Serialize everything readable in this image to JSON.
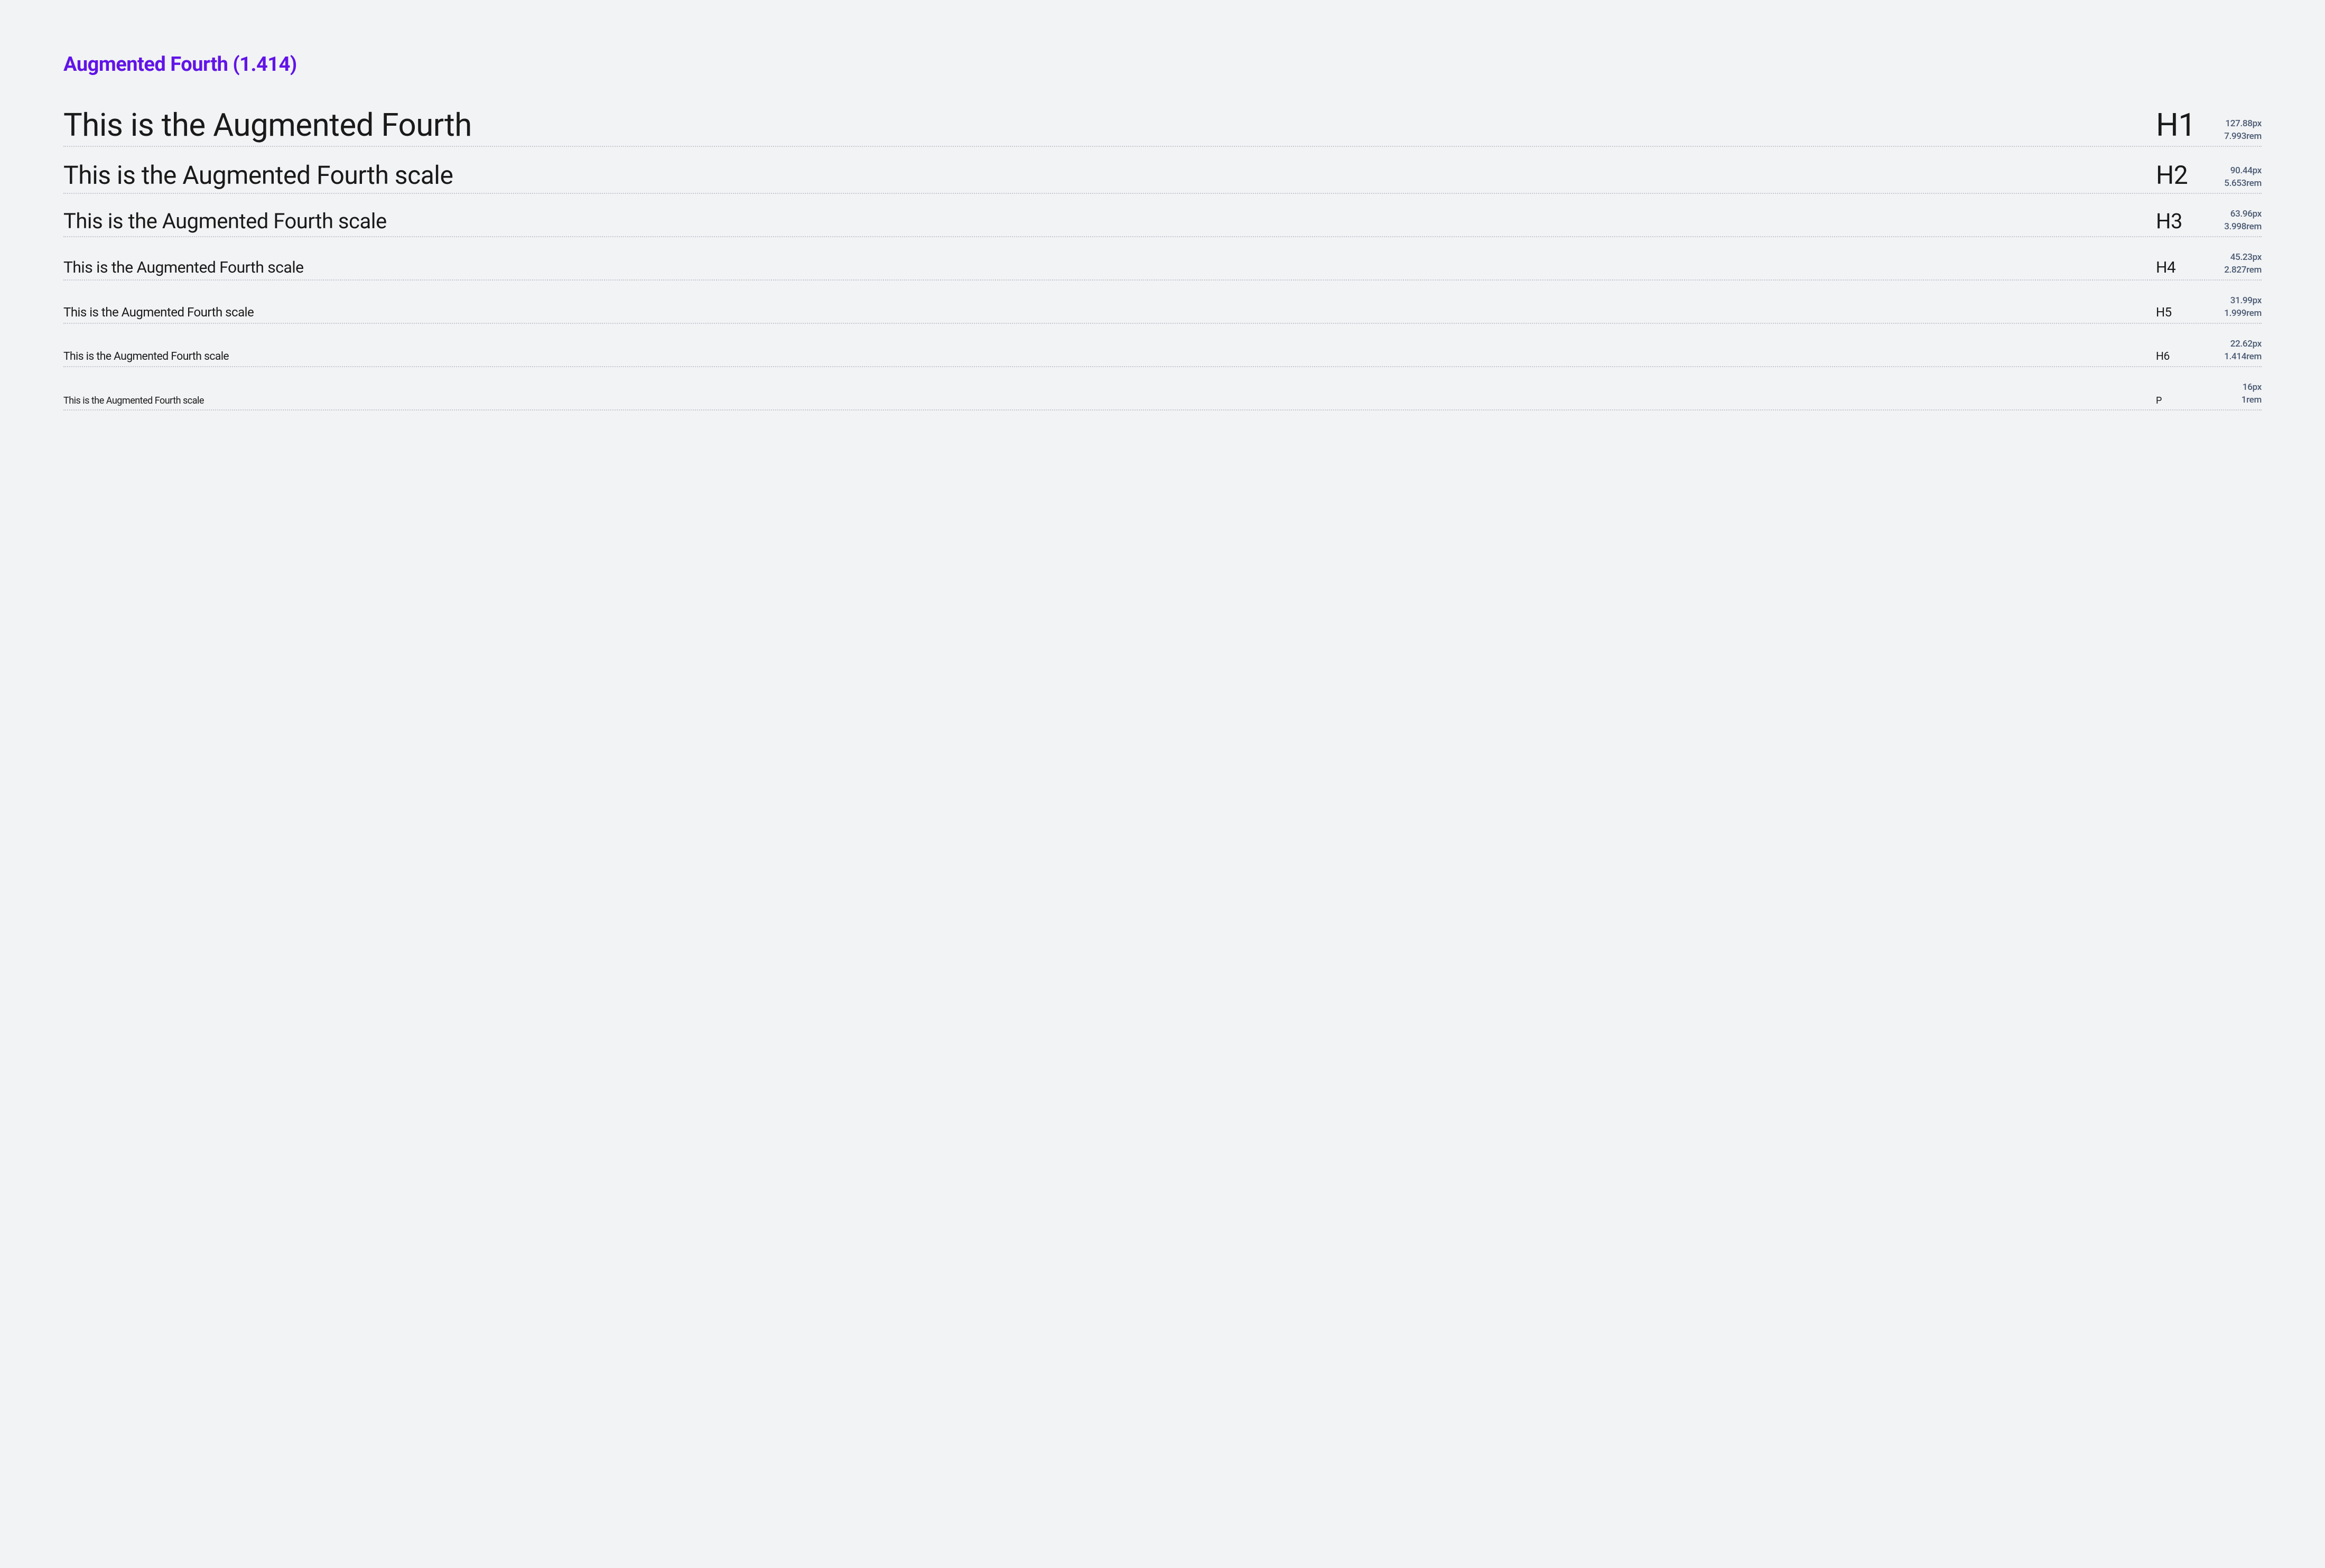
{
  "title": "Augmented Fourth (1.414)",
  "title_color": "#6114e8",
  "background_color": "#f2f3f5",
  "text_color": "#1a1a1a",
  "meta_color": "#4a5a72",
  "divider_color": "#c5c8cf",
  "rows": [
    {
      "sample": "This is the Augmented Fourth",
      "tag": "H1",
      "px": "127.88px",
      "rem": "7.993rem",
      "sample_fontsize": 60,
      "tag_fontsize": 60
    },
    {
      "sample": "This is the Augmented Fourth scale",
      "tag": "H2",
      "px": "90.44px",
      "rem": "5.653rem",
      "sample_fontsize": 48,
      "tag_fontsize": 48
    },
    {
      "sample": "This is the Augmented Fourth scale",
      "tag": "H3",
      "px": "63.96px",
      "rem": "3.998rem",
      "sample_fontsize": 40,
      "tag_fontsize": 40
    },
    {
      "sample": "This is the Augmented Fourth scale",
      "tag": "H4",
      "px": "45.23px",
      "rem": "2.827rem",
      "sample_fontsize": 30,
      "tag_fontsize": 30
    },
    {
      "sample": "This is the Augmented Fourth scale",
      "tag": "H5",
      "px": "31.99px",
      "rem": "1.999rem",
      "sample_fontsize": 24,
      "tag_fontsize": 24
    },
    {
      "sample": "This is the Augmented Fourth scale",
      "tag": "H6",
      "px": "22.62px",
      "rem": "1.414rem",
      "sample_fontsize": 21,
      "tag_fontsize": 21
    },
    {
      "sample": "This is the Augmented Fourth scale",
      "tag": "P",
      "px": "16px",
      "rem": "1rem",
      "sample_fontsize": 18,
      "tag_fontsize": 18
    }
  ]
}
